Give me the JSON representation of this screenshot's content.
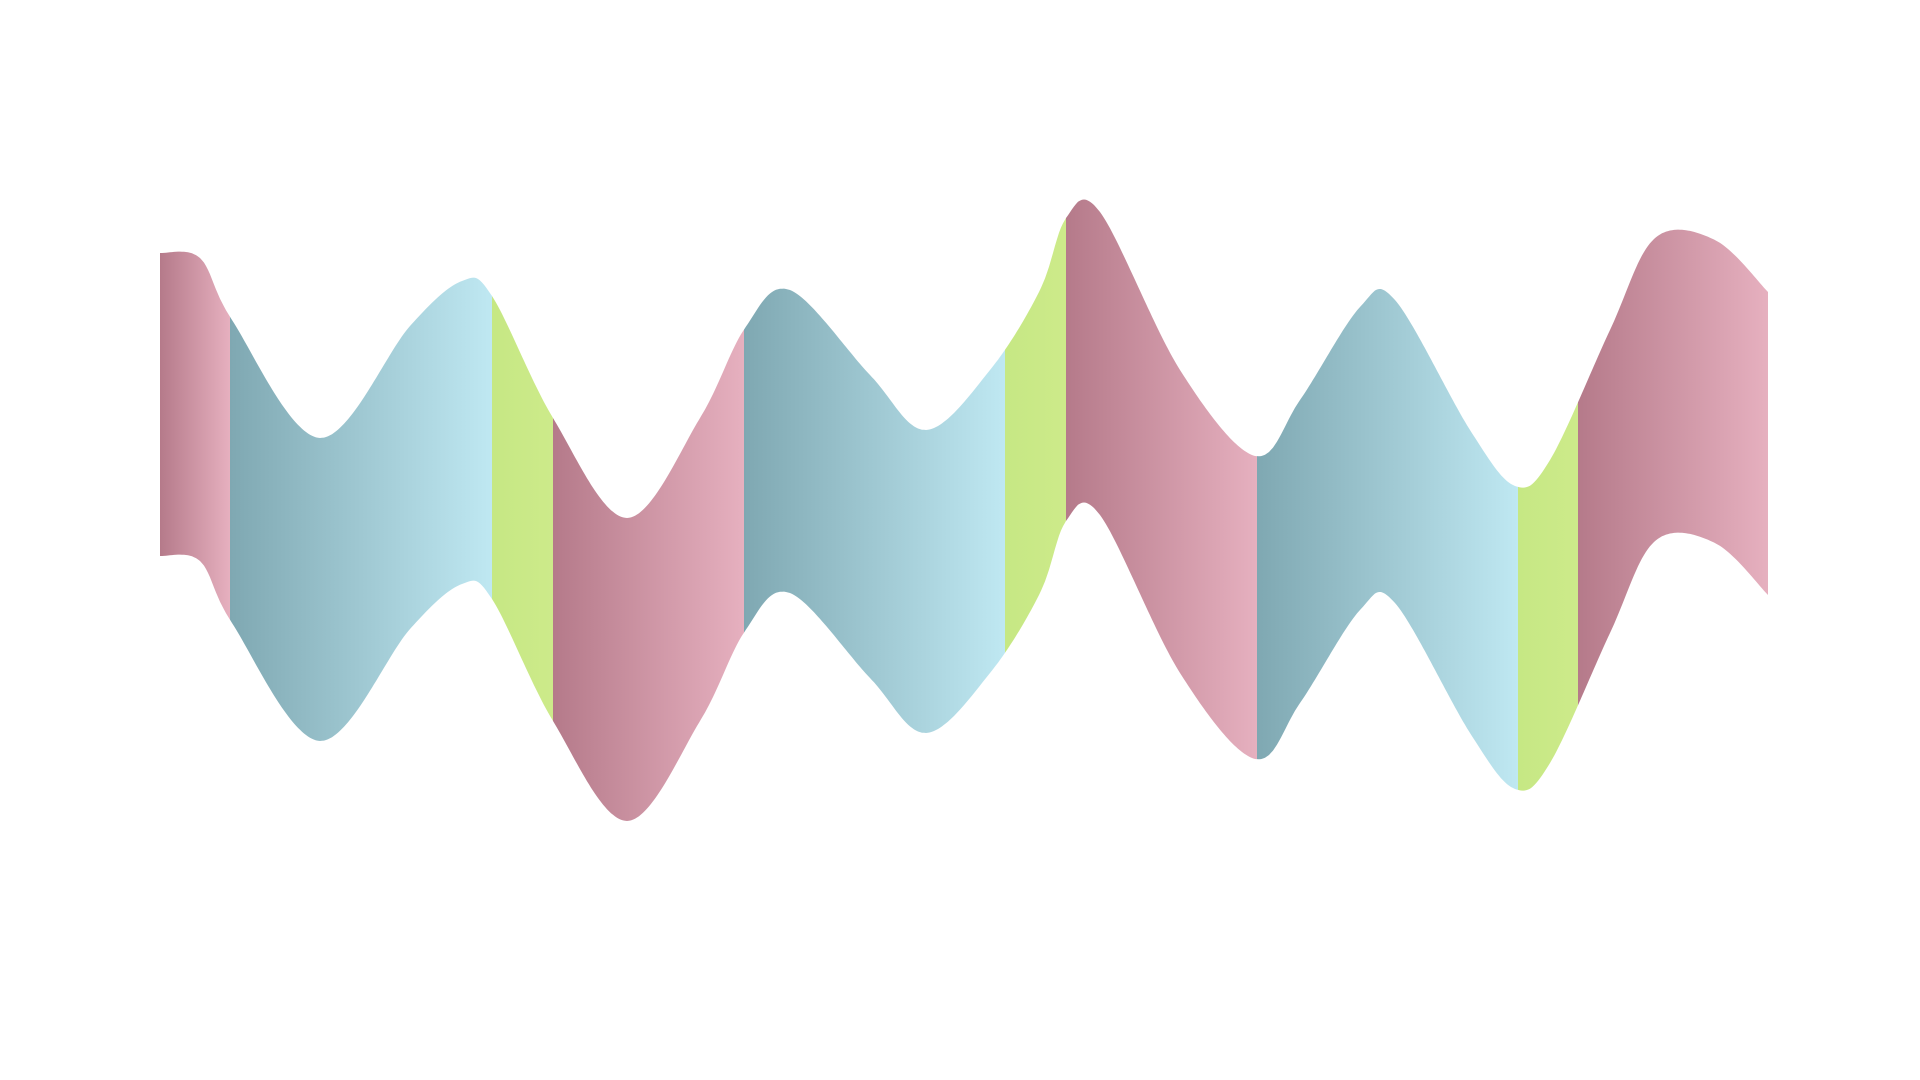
{
  "artwork": {
    "kind": "decorative-wave-ribbon",
    "palette": {
      "pink": [
        "#b57a8a",
        "#e6b0bf"
      ],
      "teal": [
        "#7fa8b2",
        "#bfe8f2"
      ],
      "lime": [
        "#c6e884",
        "#cdea8a"
      ]
    },
    "segments": [
      {
        "color": "pink"
      },
      {
        "color": "teal"
      },
      {
        "color": "lime"
      },
      {
        "color": "pink"
      },
      {
        "color": "teal"
      },
      {
        "color": "lime"
      },
      {
        "color": "pink"
      },
      {
        "color": "teal"
      },
      {
        "color": "lime"
      },
      {
        "color": "pink"
      }
    ]
  }
}
